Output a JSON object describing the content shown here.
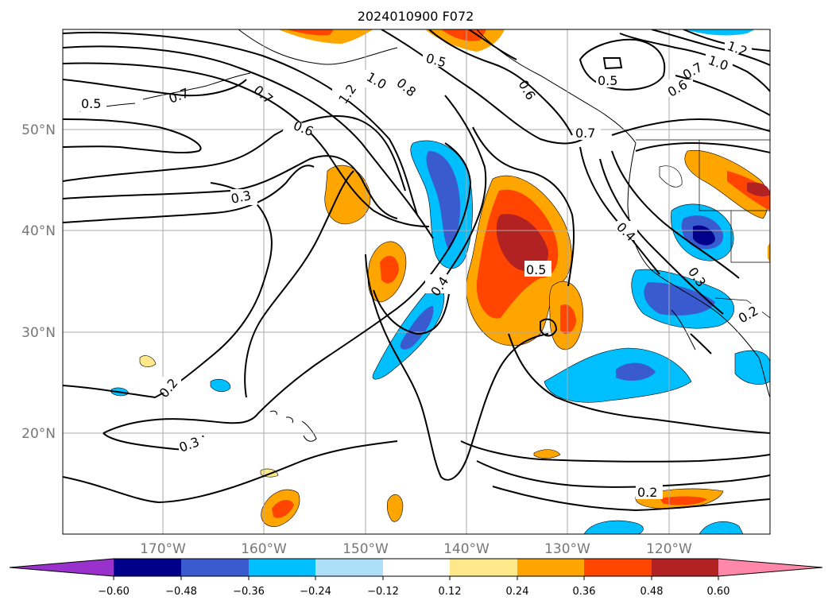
{
  "title": "2024010900 F072",
  "latitude_labels": [
    "50°N",
    "40°N",
    "30°N",
    "20°N"
  ],
  "longitude_labels": [
    "170°W",
    "160°W",
    "150°W",
    "140°W",
    "130°W",
    "120°W"
  ],
  "colorbar": {
    "tick_labels": [
      "−0.60",
      "−0.48",
      "−0.36",
      "−0.24",
      "−0.12",
      "0.12",
      "0.24",
      "0.36",
      "0.48",
      "0.60"
    ],
    "colors": [
      "#9932CC",
      "#00008B",
      "#3A5BD0",
      "#00BFFF",
      "#ADDFF8",
      "#FFFFFF",
      "#FFE88A",
      "#FFA500",
      "#FF4500",
      "#B22222",
      "#FF88AA"
    ]
  },
  "contour_labels": [
    "0.5",
    "0.7",
    "0.6",
    "0.3",
    "0.2",
    "0.3",
    "1.2",
    "1.0",
    "0.8",
    "0.5",
    "0.7",
    "0.6",
    "0.4",
    "0.5",
    "0.5",
    "0.7",
    "0.6",
    "1.0",
    "1.2",
    "0.7",
    "0.4",
    "0.3",
    "0.2",
    "0.2"
  ]
}
